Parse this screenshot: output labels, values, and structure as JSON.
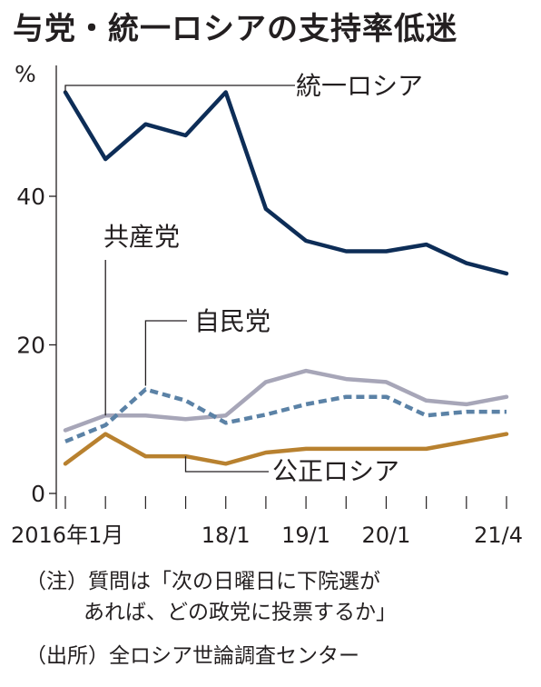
{
  "title": "与党・統一ロシアの支持率低迷",
  "chart_data": {
    "type": "line",
    "y_unit": "%",
    "ylim": [
      0,
      55
    ],
    "yticks": [
      0,
      20,
      40
    ],
    "x_tick_labels": [
      "2016年1月",
      "18/1",
      "19/1",
      "20/1",
      "21/4"
    ],
    "grid": false,
    "series": [
      {
        "name": "統一ロシア",
        "color": "#0d2d57",
        "dash": false,
        "values": [
          54.0,
          45.0,
          49.7,
          48.2,
          54.0,
          38.3,
          34.0,
          32.6,
          32.6,
          33.5,
          31.0,
          29.6
        ]
      },
      {
        "name": "共産党",
        "color": "#a7a6b8",
        "dash": false,
        "values": [
          8.5,
          10.5,
          10.5,
          10.0,
          10.5,
          15.0,
          16.5,
          15.4,
          15.0,
          12.5,
          12.0,
          13.0
        ]
      },
      {
        "name": "自民党",
        "color": "#5b82a6",
        "dash": true,
        "values": [
          7.0,
          9.2,
          14.0,
          12.5,
          9.5,
          10.6,
          12.0,
          13.0,
          13.0,
          10.5,
          11.0,
          11.0
        ]
      },
      {
        "name": "公正ロシア",
        "color": "#b8812f",
        "dash": false,
        "values": [
          4.0,
          8.0,
          5.0,
          5.0,
          4.0,
          5.5,
          6.0,
          6.0,
          6.0,
          6.0,
          7.0,
          8.0
        ]
      }
    ]
  },
  "notes": {
    "note_line1": "（注）質問は「次の日曜日に下院選が",
    "note_line2": "あれば、どの政党に投票するか」",
    "source": "（出所）全ロシア世論調査センター"
  }
}
